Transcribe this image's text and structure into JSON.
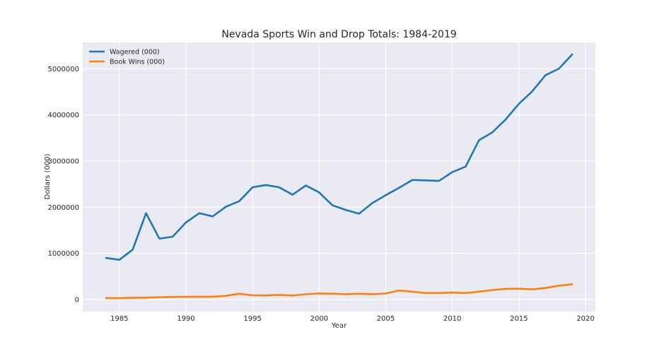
{
  "chart_data": {
    "type": "line",
    "title": "Nevada Sports Win and Drop Totals: 1984-2019",
    "xlabel": "Year",
    "ylabel": "Dollars (000)",
    "xlim": [
      1982.25,
      2020.75
    ],
    "ylim": [
      -260000,
      5570000
    ],
    "xticks": [
      1985,
      1990,
      1995,
      2000,
      2005,
      2010,
      2015,
      2020
    ],
    "yticks": [
      0,
      1000000,
      2000000,
      3000000,
      4000000,
      5000000
    ],
    "grid": true,
    "legend_position": "top-left",
    "x": [
      1984,
      1985,
      1986,
      1987,
      1988,
      1989,
      1990,
      1991,
      1992,
      1993,
      1994,
      1995,
      1996,
      1997,
      1998,
      1999,
      2000,
      2001,
      2002,
      2003,
      2004,
      2005,
      2006,
      2007,
      2008,
      2009,
      2010,
      2011,
      2012,
      2013,
      2014,
      2015,
      2016,
      2017,
      2018,
      2019
    ],
    "series": [
      {
        "name": "Wagered (000)",
        "color": "#1f77b4",
        "values": [
          900000,
          860000,
          1080000,
          1870000,
          1320000,
          1360000,
          1670000,
          1870000,
          1800000,
          2010000,
          2130000,
          2430000,
          2480000,
          2430000,
          2270000,
          2470000,
          2320000,
          2040000,
          1940000,
          1860000,
          2090000,
          2260000,
          2420000,
          2590000,
          2580000,
          2570000,
          2760000,
          2880000,
          3450000,
          3620000,
          3900000,
          4240000,
          4510000,
          4860000,
          5000000,
          5310000
        ]
      },
      {
        "name": "Book Wins (000)",
        "color": "#ff7f0e",
        "values": [
          30000,
          30000,
          40000,
          40000,
          50000,
          55000,
          58000,
          60000,
          60000,
          80000,
          125000,
          90000,
          87000,
          100000,
          85000,
          115000,
          130000,
          125000,
          115000,
          125000,
          115000,
          130000,
          195000,
          170000,
          140000,
          140000,
          150000,
          140000,
          170000,
          205000,
          230000,
          235000,
          220000,
          250000,
          300000,
          330000
        ]
      }
    ]
  }
}
